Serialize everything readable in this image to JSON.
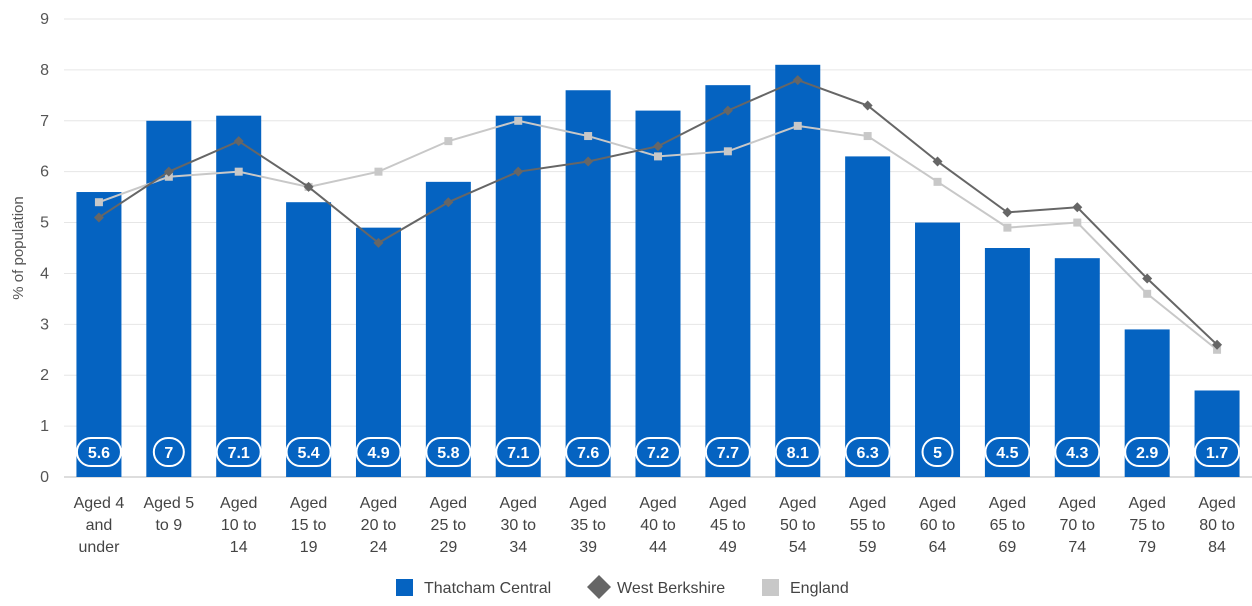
{
  "chart_data": {
    "type": "bar",
    "ylabel": "% of population",
    "ylim": [
      0,
      9
    ],
    "yticks": [
      0,
      1,
      2,
      3,
      4,
      5,
      6,
      7,
      8,
      9
    ],
    "grid": true,
    "legend_position": "bottom",
    "categories": [
      [
        "Aged 4",
        "and",
        "under"
      ],
      [
        "Aged 5",
        "to 9"
      ],
      [
        "Aged",
        "10 to",
        "14"
      ],
      [
        "Aged",
        "15 to",
        "19"
      ],
      [
        "Aged",
        "20 to",
        "24"
      ],
      [
        "Aged",
        "25 to",
        "29"
      ],
      [
        "Aged",
        "30 to",
        "34"
      ],
      [
        "Aged",
        "35 to",
        "39"
      ],
      [
        "Aged",
        "40 to",
        "44"
      ],
      [
        "Aged",
        "45 to",
        "49"
      ],
      [
        "Aged",
        "50 to",
        "54"
      ],
      [
        "Aged",
        "55 to",
        "59"
      ],
      [
        "Aged",
        "60 to",
        "64"
      ],
      [
        "Aged",
        "65 to",
        "69"
      ],
      [
        "Aged",
        "70 to",
        "74"
      ],
      [
        "Aged",
        "75 to",
        "79"
      ],
      [
        "Aged",
        "80 to",
        "84"
      ]
    ],
    "series": [
      {
        "name": "Thatcham Central",
        "kind": "bar",
        "color": "#0563c1",
        "values": [
          5.6,
          7,
          7.1,
          5.4,
          4.9,
          5.8,
          7.1,
          7.6,
          7.2,
          7.7,
          8.1,
          6.3,
          5,
          4.5,
          4.3,
          2.9,
          1.7
        ],
        "data_labels": [
          "5.6",
          "7",
          "7.1",
          "5.4",
          "4.9",
          "5.8",
          "7.1",
          "7.6",
          "7.2",
          "7.7",
          "8.1",
          "6.3",
          "5",
          "4.5",
          "4.3",
          "2.9",
          "1.7"
        ]
      },
      {
        "name": "West Berkshire",
        "kind": "line",
        "marker": "diamond",
        "color": "#666666",
        "values": [
          5.1,
          6.0,
          6.6,
          5.7,
          4.6,
          5.4,
          6.0,
          6.2,
          6.5,
          7.2,
          7.8,
          7.3,
          6.2,
          5.2,
          5.3,
          3.9,
          2.6
        ]
      },
      {
        "name": "England",
        "kind": "line",
        "marker": "square",
        "color": "#c8c8c8",
        "values": [
          5.4,
          5.9,
          6.0,
          5.7,
          6.0,
          6.6,
          7.0,
          6.7,
          6.3,
          6.4,
          6.9,
          6.7,
          5.8,
          4.9,
          5.0,
          3.6,
          2.5
        ]
      }
    ]
  }
}
